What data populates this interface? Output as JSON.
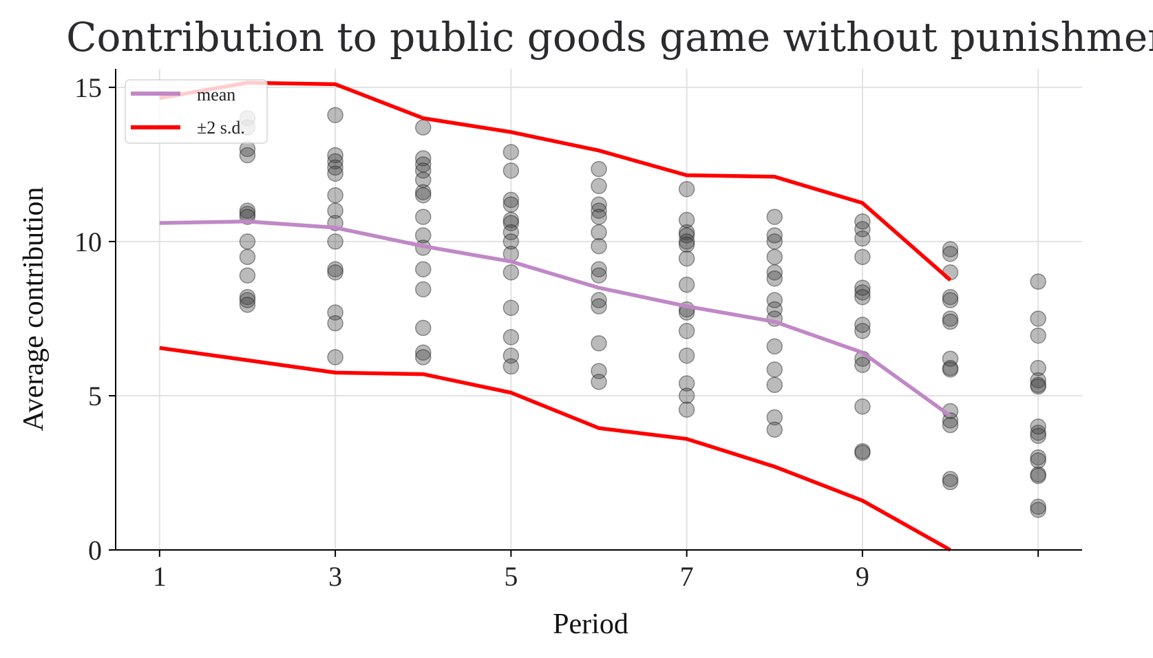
{
  "chart_data": {
    "type": "line+scatter",
    "title": "Contribution to public goods game without punishment",
    "xlabel": "Period",
    "ylabel": "Average contribution",
    "xlim": [
      0.5,
      11.5
    ],
    "ylim": [
      0,
      15.6
    ],
    "x_ticks": [
      1,
      3,
      5,
      7,
      9,
      11
    ],
    "x_tick_labels": [
      "1",
      "3",
      "5",
      "7",
      "9",
      ""
    ],
    "y_ticks": [
      0,
      5,
      10,
      15
    ],
    "y_tick_labels": [
      "0",
      "5",
      "10",
      "15"
    ],
    "grid": true,
    "legend_position": "top-left",
    "colors": {
      "mean": "#c088c6",
      "sd": "#ff0000",
      "scatter": "#555555",
      "grid": "#e2e2e2",
      "axis": "#000000"
    },
    "series": [
      {
        "name": "mean",
        "x": [
          1,
          2,
          3,
          4,
          5,
          6,
          7,
          8,
          9,
          10
        ],
        "values": [
          10.6,
          10.65,
          10.45,
          9.85,
          9.35,
          8.5,
          7.9,
          7.4,
          6.4,
          4.35
        ]
      },
      {
        "name": "±2 s.d.",
        "x": [
          1,
          2,
          3,
          4,
          5,
          6,
          7,
          8,
          9,
          10
        ],
        "values": [
          14.65,
          15.15,
          15.1,
          14.0,
          13.55,
          12.95,
          12.15,
          12.1,
          11.25,
          8.75
        ]
      },
      {
        "name": "-2 s.d.",
        "legend": false,
        "x": [
          1,
          2,
          3,
          4,
          5,
          6,
          7,
          8,
          9,
          10
        ],
        "values": [
          6.55,
          6.15,
          5.75,
          5.7,
          5.1,
          3.95,
          3.6,
          2.7,
          1.6,
          0.0
        ]
      }
    ],
    "scatter": [
      {
        "x": 2,
        "values": [
          14.0,
          13.7,
          13.0,
          12.8,
          11.0,
          10.9,
          10.8,
          10.0,
          9.5,
          8.9,
          8.2,
          8.1,
          7.95
        ]
      },
      {
        "x": 3,
        "values": [
          14.1,
          12.8,
          12.6,
          12.4,
          12.2,
          11.5,
          11.0,
          10.6,
          10.0,
          9.1,
          9.0,
          7.7,
          7.35,
          6.25
        ]
      },
      {
        "x": 4,
        "values": [
          13.7,
          12.7,
          12.5,
          12.3,
          12.0,
          11.6,
          11.5,
          10.8,
          10.2,
          9.8,
          9.1,
          8.45,
          7.2,
          6.4,
          6.25
        ]
      },
      {
        "x": 5,
        "values": [
          12.9,
          12.3,
          11.35,
          11.2,
          10.7,
          10.6,
          10.3,
          10.0,
          9.6,
          9.0,
          7.85,
          6.9,
          6.3,
          5.95
        ]
      },
      {
        "x": 6,
        "values": [
          12.35,
          11.8,
          11.2,
          11.0,
          10.8,
          10.3,
          9.85,
          9.1,
          8.9,
          8.1,
          7.9,
          6.7,
          5.8,
          5.45
        ]
      },
      {
        "x": 7,
        "values": [
          11.7,
          10.7,
          10.3,
          10.2,
          10.0,
          9.9,
          9.45,
          8.6,
          7.8,
          7.7,
          7.1,
          6.3,
          5.4,
          5.0,
          4.55
        ]
      },
      {
        "x": 8,
        "values": [
          10.8,
          10.2,
          10.0,
          9.5,
          9.0,
          8.8,
          8.1,
          7.8,
          7.5,
          6.6,
          5.85,
          5.35,
          4.3,
          3.9
        ]
      },
      {
        "x": 9,
        "values": [
          10.65,
          10.4,
          10.1,
          9.5,
          8.5,
          8.35,
          8.2,
          7.3,
          7.1,
          6.2,
          6.0,
          4.65,
          3.2,
          3.15
        ]
      },
      {
        "x": 10,
        "values": [
          9.75,
          9.6,
          9.0,
          8.2,
          8.1,
          7.5,
          7.4,
          6.2,
          5.9,
          5.85,
          4.5,
          4.2,
          4.05,
          2.3,
          2.2
        ]
      },
      {
        "x": 11,
        "values": [
          8.7,
          7.5,
          6.95,
          5.9,
          5.5,
          5.35,
          5.3,
          4.0,
          3.8,
          3.7,
          3.0,
          2.9,
          2.45,
          2.4,
          1.4,
          1.3
        ]
      }
    ]
  }
}
